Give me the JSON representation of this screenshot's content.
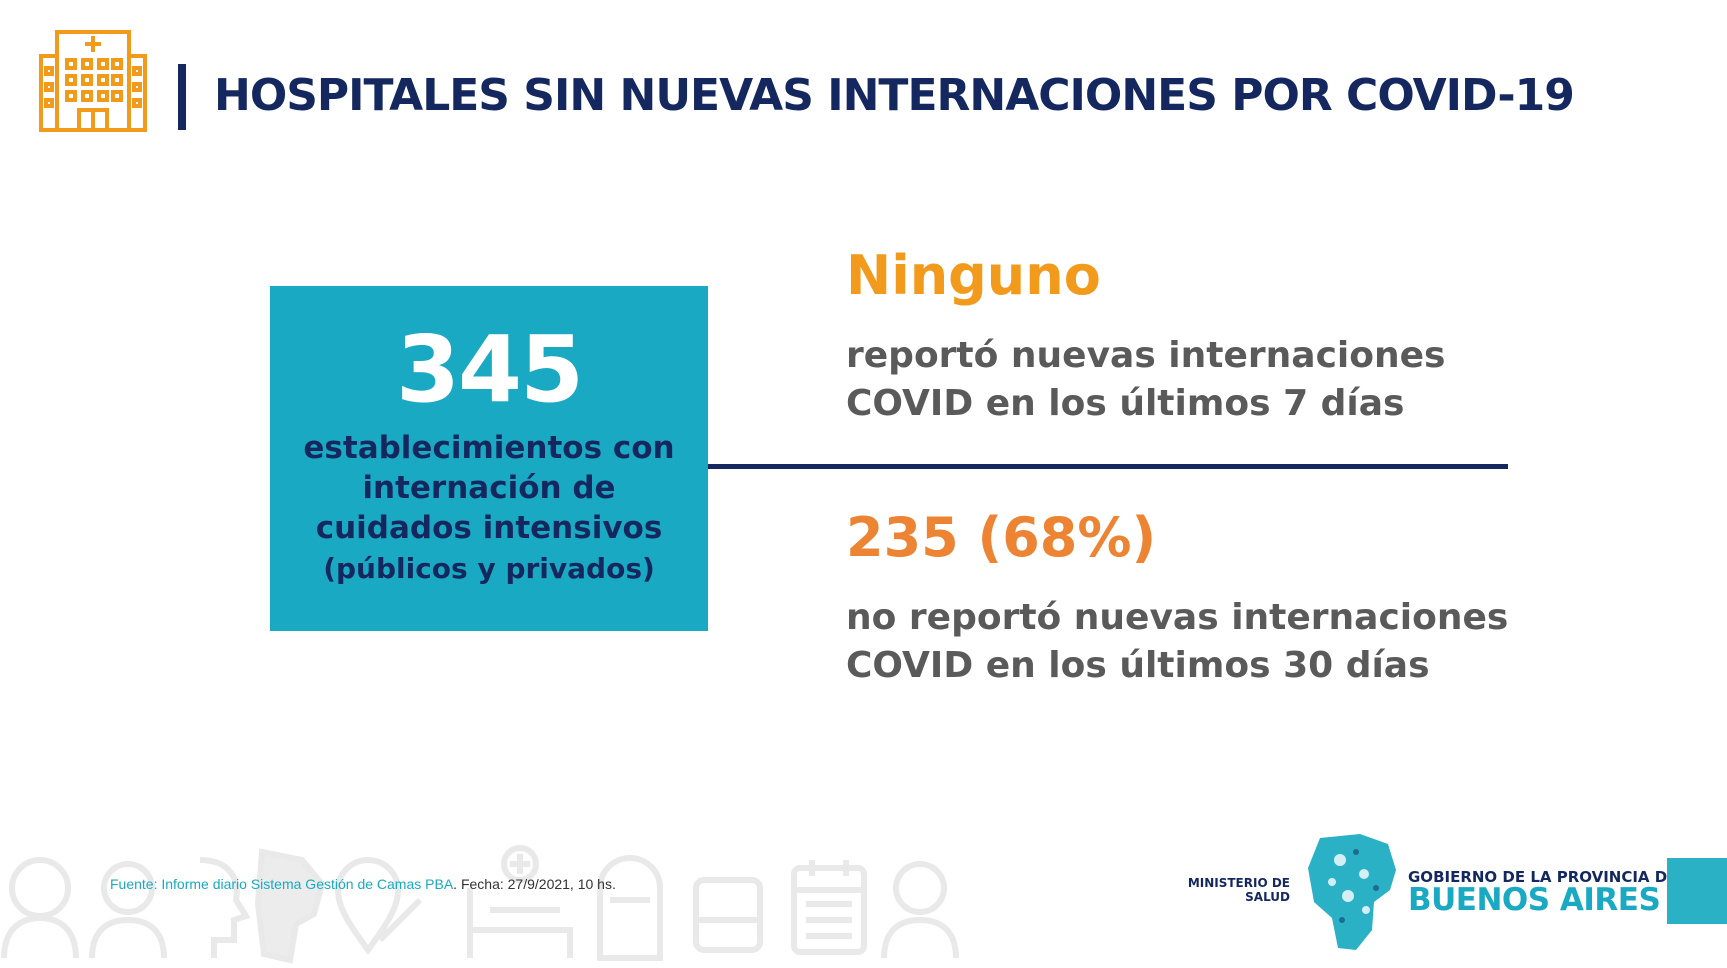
{
  "header": {
    "icon": "hospital-icon",
    "title": "HOSPITALES SIN NUEVAS INTERNACIONES POR COVID-19"
  },
  "stat_box": {
    "number": "345",
    "description_lines": [
      "establecimientos con",
      "internación de",
      "cuidados intensivos"
    ],
    "sub": "(públicos y privados)"
  },
  "block1": {
    "highlight": "Ninguno",
    "lines": [
      "reportó nuevas internaciones",
      "COVID en los últimos 7 días"
    ]
  },
  "block2": {
    "highlight": "235 (68%)",
    "lines": [
      "no reportó nuevas internaciones",
      "COVID en los últimos 30 días"
    ]
  },
  "footer": {
    "source_link": "Fuente: Informe diario Sistema Gestión de Camas PBA",
    "source_date": ". Fecha: 27/9/2021, 10 hs.",
    "ministerio_lines": [
      "MINISTERIO DE",
      "SALUD"
    ],
    "gobierno_line1": "GOBIERNO DE LA PROVINCIA DE",
    "gobierno_line2": "BUENOS AIRES",
    "decorative_icons": [
      "elderly-person-icon",
      "nurse-icon",
      "profile-icon",
      "map-icon",
      "location-pin-icon",
      "hospital-bed-icon",
      "train-icon",
      "bus-icon",
      "calendar-icon",
      "person-mask-icon"
    ]
  },
  "colors": {
    "navy": "#14285f",
    "teal": "#1aa9c2",
    "orange": "#f29a1c",
    "orange_dark": "#ed8433",
    "gray_text": "#5a5a5a"
  }
}
